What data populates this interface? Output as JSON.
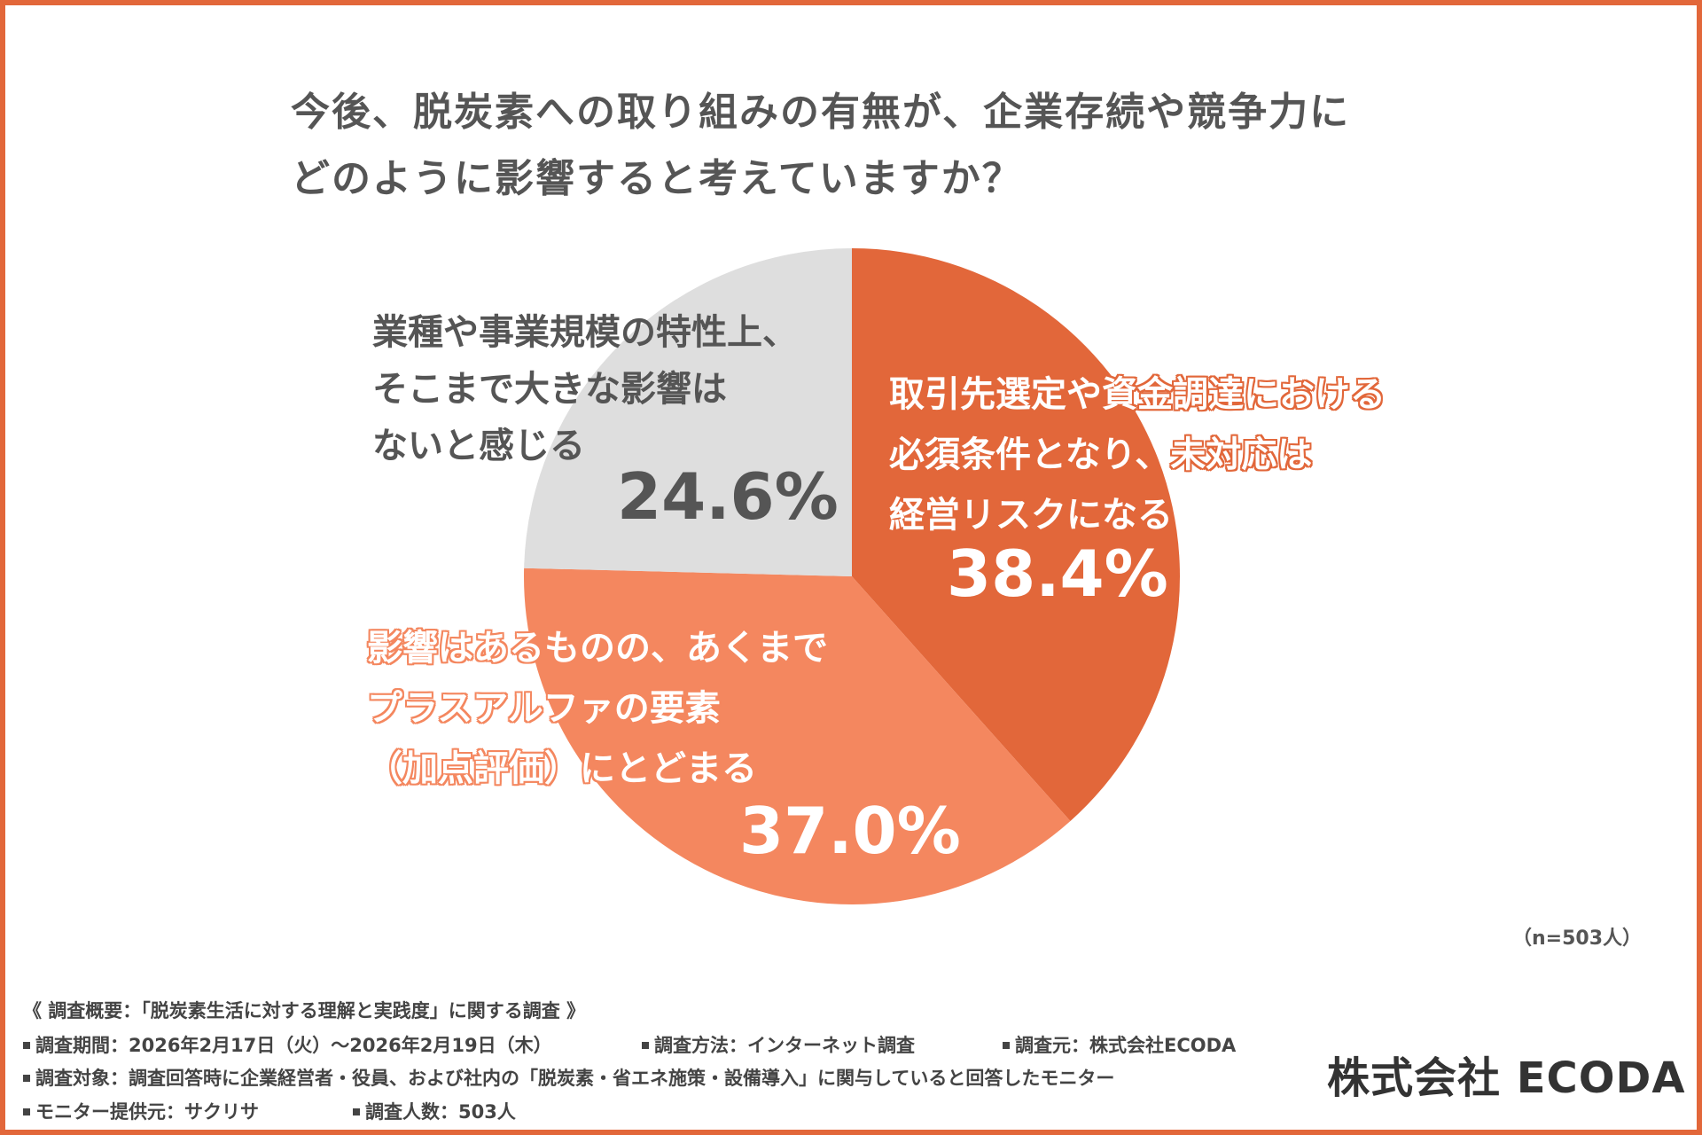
{
  "title": {
    "line1": "今後、脱炭素への取り組みの有無が、企業存続や競争力に",
    "line2": "どのように影響すると考えていますか？"
  },
  "chart_data": {
    "type": "pie",
    "start_angle_deg": 0,
    "direction": "clockwise",
    "slices": [
      {
        "label_lines": [
          "取引先選定や資金調達における",
          "必須条件となり、未対応は",
          "経営リスクになる"
        ],
        "value": 38.4,
        "value_label": "38.4%",
        "color": "#e2673a"
      },
      {
        "label_lines": [
          "影響はあるものの、あくまで",
          "プラスアルファの要素",
          "（加点評価）にとどまる"
        ],
        "value": 37.0,
        "value_label": "37.0%",
        "color": "#f4875f"
      },
      {
        "label_lines": [
          "業種や事業規模の特性上、",
          "そこまで大きな影響は",
          "ないと感じる"
        ],
        "value": 24.6,
        "value_label": "24.6%",
        "color": "#dedede"
      }
    ],
    "sample_size": "（n=503人）"
  },
  "footer": {
    "summary": "《 調査概要：「脱炭素生活に対する理解と実践度」に関する調査 》",
    "period": "調査期間：2026年2月17日（火）～2026年2月19日（木）",
    "method": "調査方法：インターネット調査",
    "source": "調査元：株式会社ECODA",
    "target": "調査対象：調査回答時に企業経営者・役員、および社内の「脱炭素・省エネ施策・設備導入」に関与していると回答したモニター",
    "provider": "モニター提供元：サクリサ",
    "count": "調査人数：503人"
  },
  "company_logo": "株式会社 ECODA",
  "colors": {
    "frame": "#e2673a",
    "primary": "#e2673a",
    "secondary": "#f4875f",
    "neutral": "#dedede",
    "text": "#555555"
  }
}
